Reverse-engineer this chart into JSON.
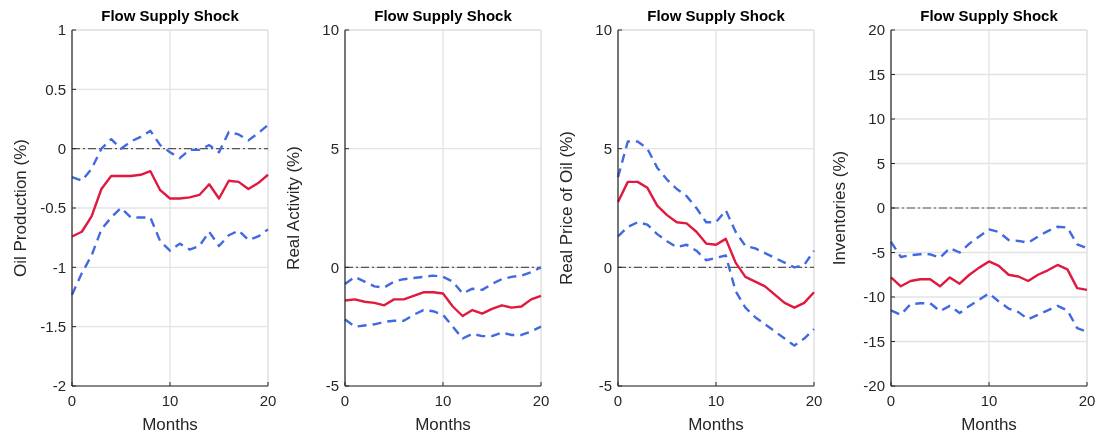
{
  "chart_data": [
    {
      "type": "line",
      "title": "Flow Supply Shock",
      "xlabel": "Months",
      "ylabel": "Oil Production (%)",
      "x": [
        0,
        1,
        2,
        3,
        4,
        5,
        6,
        7,
        8,
        9,
        10,
        11,
        12,
        13,
        14,
        15,
        16,
        17,
        18,
        19,
        20
      ],
      "xlim": [
        0,
        20
      ],
      "xticks": [
        0,
        10,
        20
      ],
      "ylim": [
        -2,
        1
      ],
      "yticks": [
        -2,
        -1.5,
        -1,
        -0.5,
        0,
        0.5,
        1
      ],
      "grid": true,
      "ref_lines": [
        {
          "axis": "y",
          "value": 0,
          "color": "#555555"
        }
      ],
      "series": [
        {
          "color": "#e0193f",
          "line_style": "solid",
          "values": [
            -0.74,
            -0.7,
            -0.57,
            -0.34,
            -0.23,
            -0.23,
            -0.23,
            -0.22,
            -0.19,
            -0.35,
            -0.42,
            -0.42,
            -0.41,
            -0.39,
            -0.3,
            -0.42,
            -0.27,
            -0.28,
            -0.34,
            -0.29,
            -0.22
          ]
        },
        {
          "color": "#4169e1",
          "line_style": "dashed",
          "values": [
            -0.24,
            -0.27,
            -0.17,
            0.0,
            0.08,
            0.0,
            0.06,
            0.1,
            0.15,
            0.03,
            -0.03,
            -0.08,
            -0.01,
            -0.01,
            0.03,
            -0.03,
            0.14,
            0.12,
            0.07,
            0.13,
            0.2
          ]
        },
        {
          "color": "#4169e1",
          "line_style": "dashed",
          "values": [
            -1.23,
            -1.05,
            -0.9,
            -0.68,
            -0.58,
            -0.5,
            -0.58,
            -0.58,
            -0.58,
            -0.78,
            -0.86,
            -0.8,
            -0.85,
            -0.82,
            -0.7,
            -0.82,
            -0.73,
            -0.69,
            -0.77,
            -0.74,
            -0.68
          ]
        }
      ]
    },
    {
      "type": "line",
      "title": "Flow Supply Shock",
      "xlabel": "Months",
      "ylabel": "Real Activity (%)",
      "x": [
        0,
        1,
        2,
        3,
        4,
        5,
        6,
        7,
        8,
        9,
        10,
        11,
        12,
        13,
        14,
        15,
        16,
        17,
        18,
        19,
        20
      ],
      "xlim": [
        0,
        20
      ],
      "xticks": [
        0,
        10,
        20
      ],
      "ylim": [
        -5,
        10
      ],
      "yticks": [
        -5,
        0,
        5,
        10
      ],
      "grid": true,
      "ref_lines": [
        {
          "axis": "y",
          "value": 0,
          "color": "#555555"
        }
      ],
      "series": [
        {
          "color": "#e0193f",
          "line_style": "solid",
          "values": [
            -1.4,
            -1.35,
            -1.45,
            -1.5,
            -1.6,
            -1.35,
            -1.35,
            -1.2,
            -1.05,
            -1.05,
            -1.1,
            -1.65,
            -2.05,
            -1.8,
            -1.95,
            -1.75,
            -1.6,
            -1.7,
            -1.65,
            -1.35,
            -1.2
          ]
        },
        {
          "color": "#4169e1",
          "line_style": "dashed",
          "values": [
            -0.7,
            -0.4,
            -0.6,
            -0.8,
            -0.85,
            -0.6,
            -0.5,
            -0.45,
            -0.4,
            -0.35,
            -0.4,
            -0.6,
            -1.1,
            -0.9,
            -0.95,
            -0.7,
            -0.5,
            -0.4,
            -0.35,
            -0.2,
            0.0
          ]
        },
        {
          "color": "#4169e1",
          "line_style": "dashed",
          "values": [
            -2.2,
            -2.5,
            -2.45,
            -2.4,
            -2.3,
            -2.25,
            -2.25,
            -2.0,
            -1.8,
            -1.85,
            -2.0,
            -2.5,
            -3.0,
            -2.8,
            -2.9,
            -2.9,
            -2.75,
            -2.85,
            -2.85,
            -2.7,
            -2.5
          ]
        }
      ]
    },
    {
      "type": "line",
      "title": "Flow Supply Shock",
      "xlabel": "Months",
      "ylabel": "Real Price of Oil (%)",
      "x": [
        0,
        1,
        2,
        3,
        4,
        5,
        6,
        7,
        8,
        9,
        10,
        11,
        12,
        13,
        14,
        15,
        16,
        17,
        18,
        19,
        20
      ],
      "xlim": [
        0,
        20
      ],
      "xticks": [
        0,
        10,
        20
      ],
      "ylim": [
        -5,
        10
      ],
      "yticks": [
        -5,
        0,
        5,
        10
      ],
      "grid": true,
      "ref_lines": [
        {
          "axis": "y",
          "value": 0,
          "color": "#555555"
        }
      ],
      "series": [
        {
          "color": "#e0193f",
          "line_style": "solid",
          "values": [
            2.75,
            3.6,
            3.6,
            3.35,
            2.6,
            2.2,
            1.9,
            1.85,
            1.5,
            1.0,
            0.95,
            1.2,
            0.2,
            -0.4,
            -0.6,
            -0.8,
            -1.15,
            -1.5,
            -1.7,
            -1.5,
            -1.05
          ]
        },
        {
          "color": "#4169e1",
          "line_style": "dashed",
          "values": [
            3.8,
            5.3,
            5.3,
            5.0,
            4.2,
            3.7,
            3.3,
            3.0,
            2.5,
            1.9,
            1.9,
            2.4,
            1.5,
            0.9,
            0.8,
            0.6,
            0.4,
            0.2,
            0.0,
            0.1,
            0.7
          ]
        },
        {
          "color": "#4169e1",
          "line_style": "dashed",
          "values": [
            1.3,
            1.7,
            1.9,
            1.8,
            1.4,
            1.1,
            0.85,
            0.95,
            0.7,
            0.3,
            0.4,
            0.5,
            -1.0,
            -1.7,
            -2.1,
            -2.4,
            -2.7,
            -3.0,
            -3.3,
            -3.0,
            -2.6
          ]
        }
      ]
    },
    {
      "type": "line",
      "title": "Flow Supply Shock",
      "xlabel": "Months",
      "ylabel": "Inventories (%)",
      "x": [
        0,
        1,
        2,
        3,
        4,
        5,
        6,
        7,
        8,
        9,
        10,
        11,
        12,
        13,
        14,
        15,
        16,
        17,
        18,
        19,
        20
      ],
      "xlim": [
        0,
        20
      ],
      "xticks": [
        0,
        10,
        20
      ],
      "ylim": [
        -20,
        20
      ],
      "yticks": [
        -20,
        -15,
        -10,
        -5,
        0,
        5,
        10,
        15,
        20
      ],
      "grid": true,
      "ref_lines": [
        {
          "axis": "y",
          "value": 0,
          "color": "#555555"
        }
      ],
      "series": [
        {
          "color": "#e0193f",
          "line_style": "solid",
          "values": [
            -7.8,
            -8.8,
            -8.2,
            -8.0,
            -8.0,
            -8.8,
            -7.8,
            -8.5,
            -7.5,
            -6.7,
            -6.0,
            -6.5,
            -7.5,
            -7.7,
            -8.2,
            -7.5,
            -7.0,
            -6.4,
            -6.9,
            -9.0,
            -9.2
          ]
        },
        {
          "color": "#4169e1",
          "line_style": "dashed",
          "values": [
            -3.8,
            -5.5,
            -5.3,
            -5.2,
            -5.2,
            -5.6,
            -4.5,
            -5.0,
            -4.0,
            -3.2,
            -2.4,
            -2.7,
            -3.6,
            -3.7,
            -3.9,
            -3.2,
            -2.6,
            -2.1,
            -2.2,
            -4.1,
            -4.5
          ]
        },
        {
          "color": "#4169e1",
          "line_style": "dashed",
          "values": [
            -11.5,
            -12.0,
            -10.8,
            -10.7,
            -10.7,
            -11.6,
            -11.0,
            -11.8,
            -11.0,
            -10.3,
            -9.6,
            -10.5,
            -11.3,
            -11.7,
            -12.5,
            -12.0,
            -11.5,
            -11.0,
            -11.5,
            -13.5,
            -13.9
          ]
        }
      ]
    }
  ]
}
